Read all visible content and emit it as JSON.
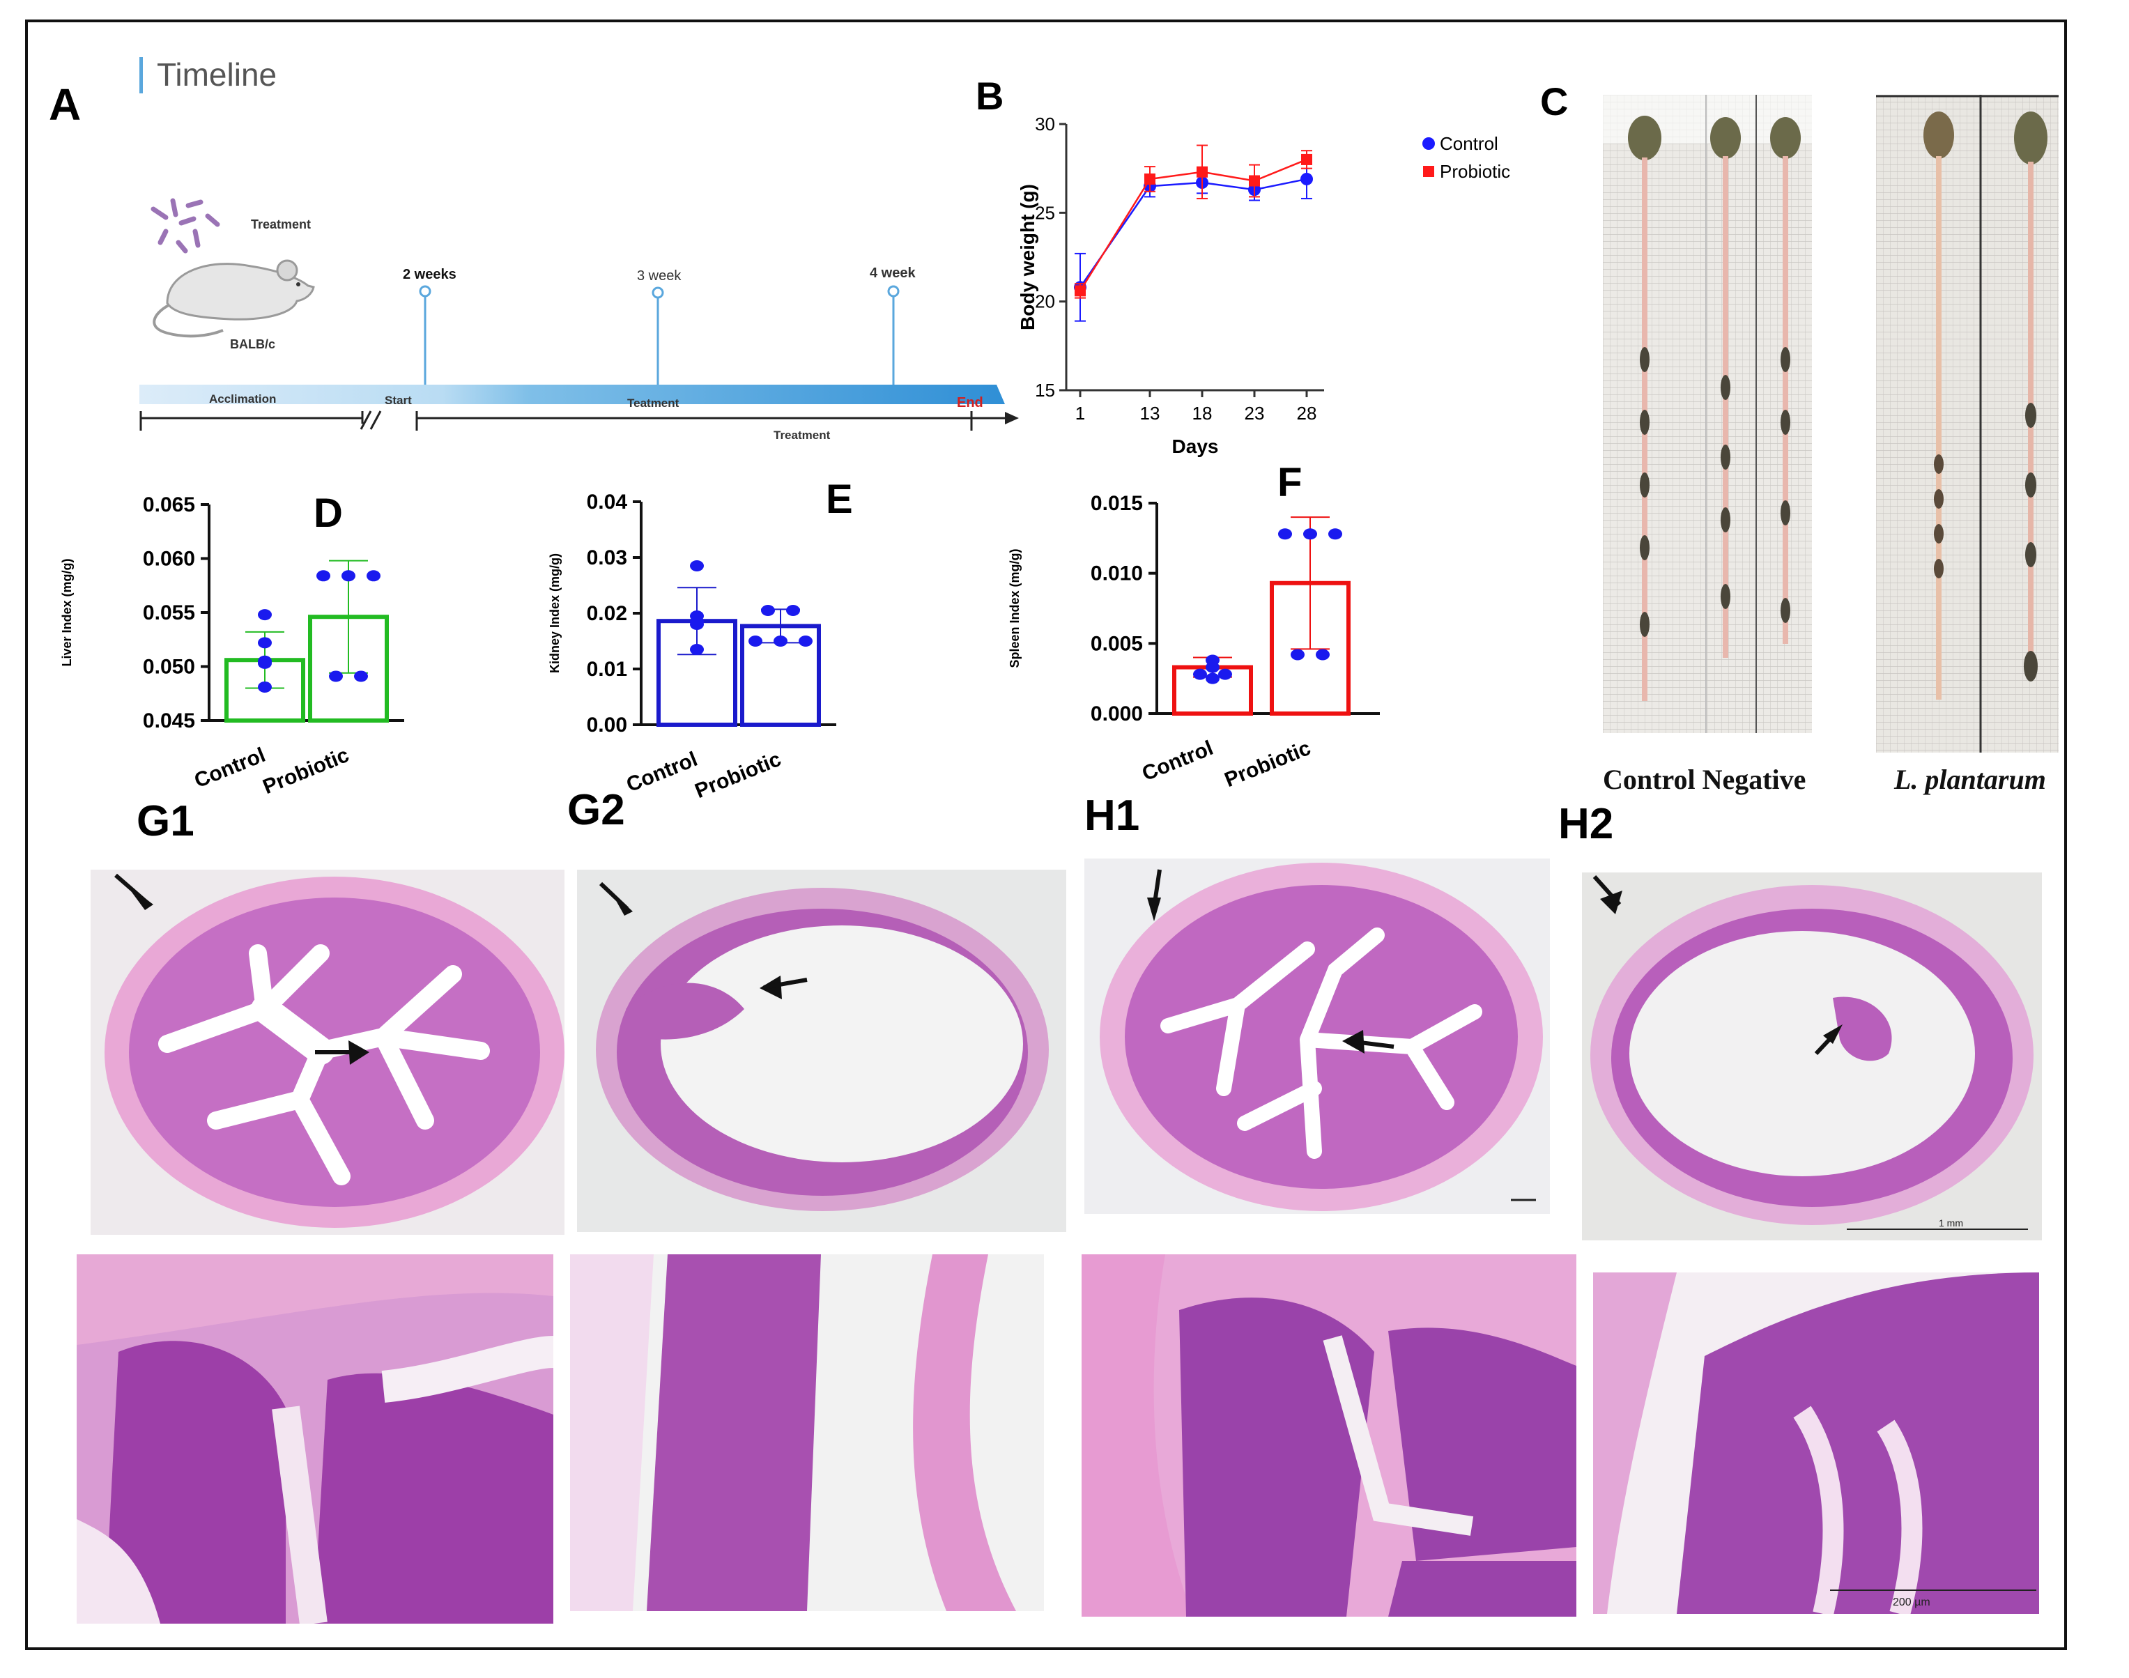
{
  "panels": {
    "A": "A",
    "B": "B",
    "C": "C",
    "D": "D",
    "E": "E",
    "F": "F",
    "G1": "G1",
    "G2": "G2",
    "H1": "H1",
    "H2": "H2"
  },
  "timeline": {
    "title": "Timeline",
    "treatment_label": "Treatment",
    "mouse_label": "BALB/c",
    "milestones": [
      "2 weeks",
      "3 week",
      "4 week"
    ],
    "bar_labels": {
      "acclimation": "Acclimation",
      "start": "Start",
      "middle": "Teatment",
      "end": "End"
    },
    "under_label": "Treatment"
  },
  "chart_data": [
    {
      "id": "B",
      "type": "line",
      "xlabel": "Days",
      "ylabel": "Body weight (g)",
      "x": [
        1,
        13,
        18,
        23,
        28
      ],
      "ylim": [
        15,
        30
      ],
      "yticks": [
        15,
        20,
        25,
        30
      ],
      "legend": "top-right",
      "series": [
        {
          "name": "Control",
          "color": "#1a1aff",
          "marker": "circle",
          "values": [
            20.8,
            26.5,
            26.7,
            26.3,
            26.9
          ],
          "err": [
            1.9,
            0.6,
            0.6,
            0.6,
            1.1
          ]
        },
        {
          "name": "Probiotic",
          "color": "#ff1a1a",
          "marker": "square",
          "values": [
            20.6,
            26.9,
            27.3,
            26.8,
            28.0
          ],
          "err": [
            0.4,
            0.7,
            1.5,
            0.9,
            0.5
          ]
        }
      ]
    },
    {
      "id": "D",
      "type": "bar",
      "ylabel": "Liver Index (mg/g)",
      "categories": [
        "Control",
        "Probiotic"
      ],
      "values": [
        0.0506,
        0.0546
      ],
      "err": [
        0.0026,
        0.0052
      ],
      "points": [
        [
          0.0548,
          0.0522,
          0.0505,
          0.0503,
          0.0481
        ],
        [
          0.0584,
          0.0584,
          0.0584,
          0.0491,
          0.0491
        ]
      ],
      "ylim": [
        0.045,
        0.065
      ],
      "yticks": [
        "0.045",
        "0.050",
        "0.055",
        "0.060",
        "0.065"
      ],
      "color": "#22bb22"
    },
    {
      "id": "E",
      "type": "bar",
      "ylabel": "Kidney Index (mg/g)",
      "categories": [
        "Control",
        "Probiotic"
      ],
      "values": [
        0.0186,
        0.0177
      ],
      "err": [
        0.006,
        0.003
      ],
      "points": [
        [
          0.0285,
          0.0195,
          0.0185,
          0.018,
          0.0135
        ],
        [
          0.0205,
          0.0205,
          0.015,
          0.015,
          0.015
        ]
      ],
      "ylim": [
        0,
        0.04
      ],
      "yticks": [
        "0.00",
        "0.01",
        "0.02",
        "0.03",
        "0.04"
      ],
      "color": "#1a1acc"
    },
    {
      "id": "F",
      "type": "bar",
      "ylabel": "Spleen Index (mg/g)",
      "categories": [
        "Control",
        "Probiotic"
      ],
      "values": [
        0.0033,
        0.0093
      ],
      "err": [
        0.0007,
        0.0047
      ],
      "points": [
        [
          0.0038,
          0.0033,
          0.0028,
          0.0028,
          0.0025
        ],
        [
          0.0128,
          0.0128,
          0.0128,
          0.0042,
          0.0042
        ]
      ],
      "ylim": [
        0,
        0.015
      ],
      "yticks": [
        "0.000",
        "0.005",
        "0.010",
        "0.015"
      ],
      "color": "#ee1111"
    }
  ],
  "intestine_photos": {
    "captions": [
      "Control Negative",
      "L. plantarum"
    ]
  },
  "histology": {
    "scale_bars": [
      "1 mm",
      "200 µm"
    ]
  },
  "colors": {
    "tissue_pink": "#d98fcf",
    "tissue_purple": "#9b4fb0",
    "timeline_blue": "#5aa7dd",
    "end_red": "#d02020"
  }
}
